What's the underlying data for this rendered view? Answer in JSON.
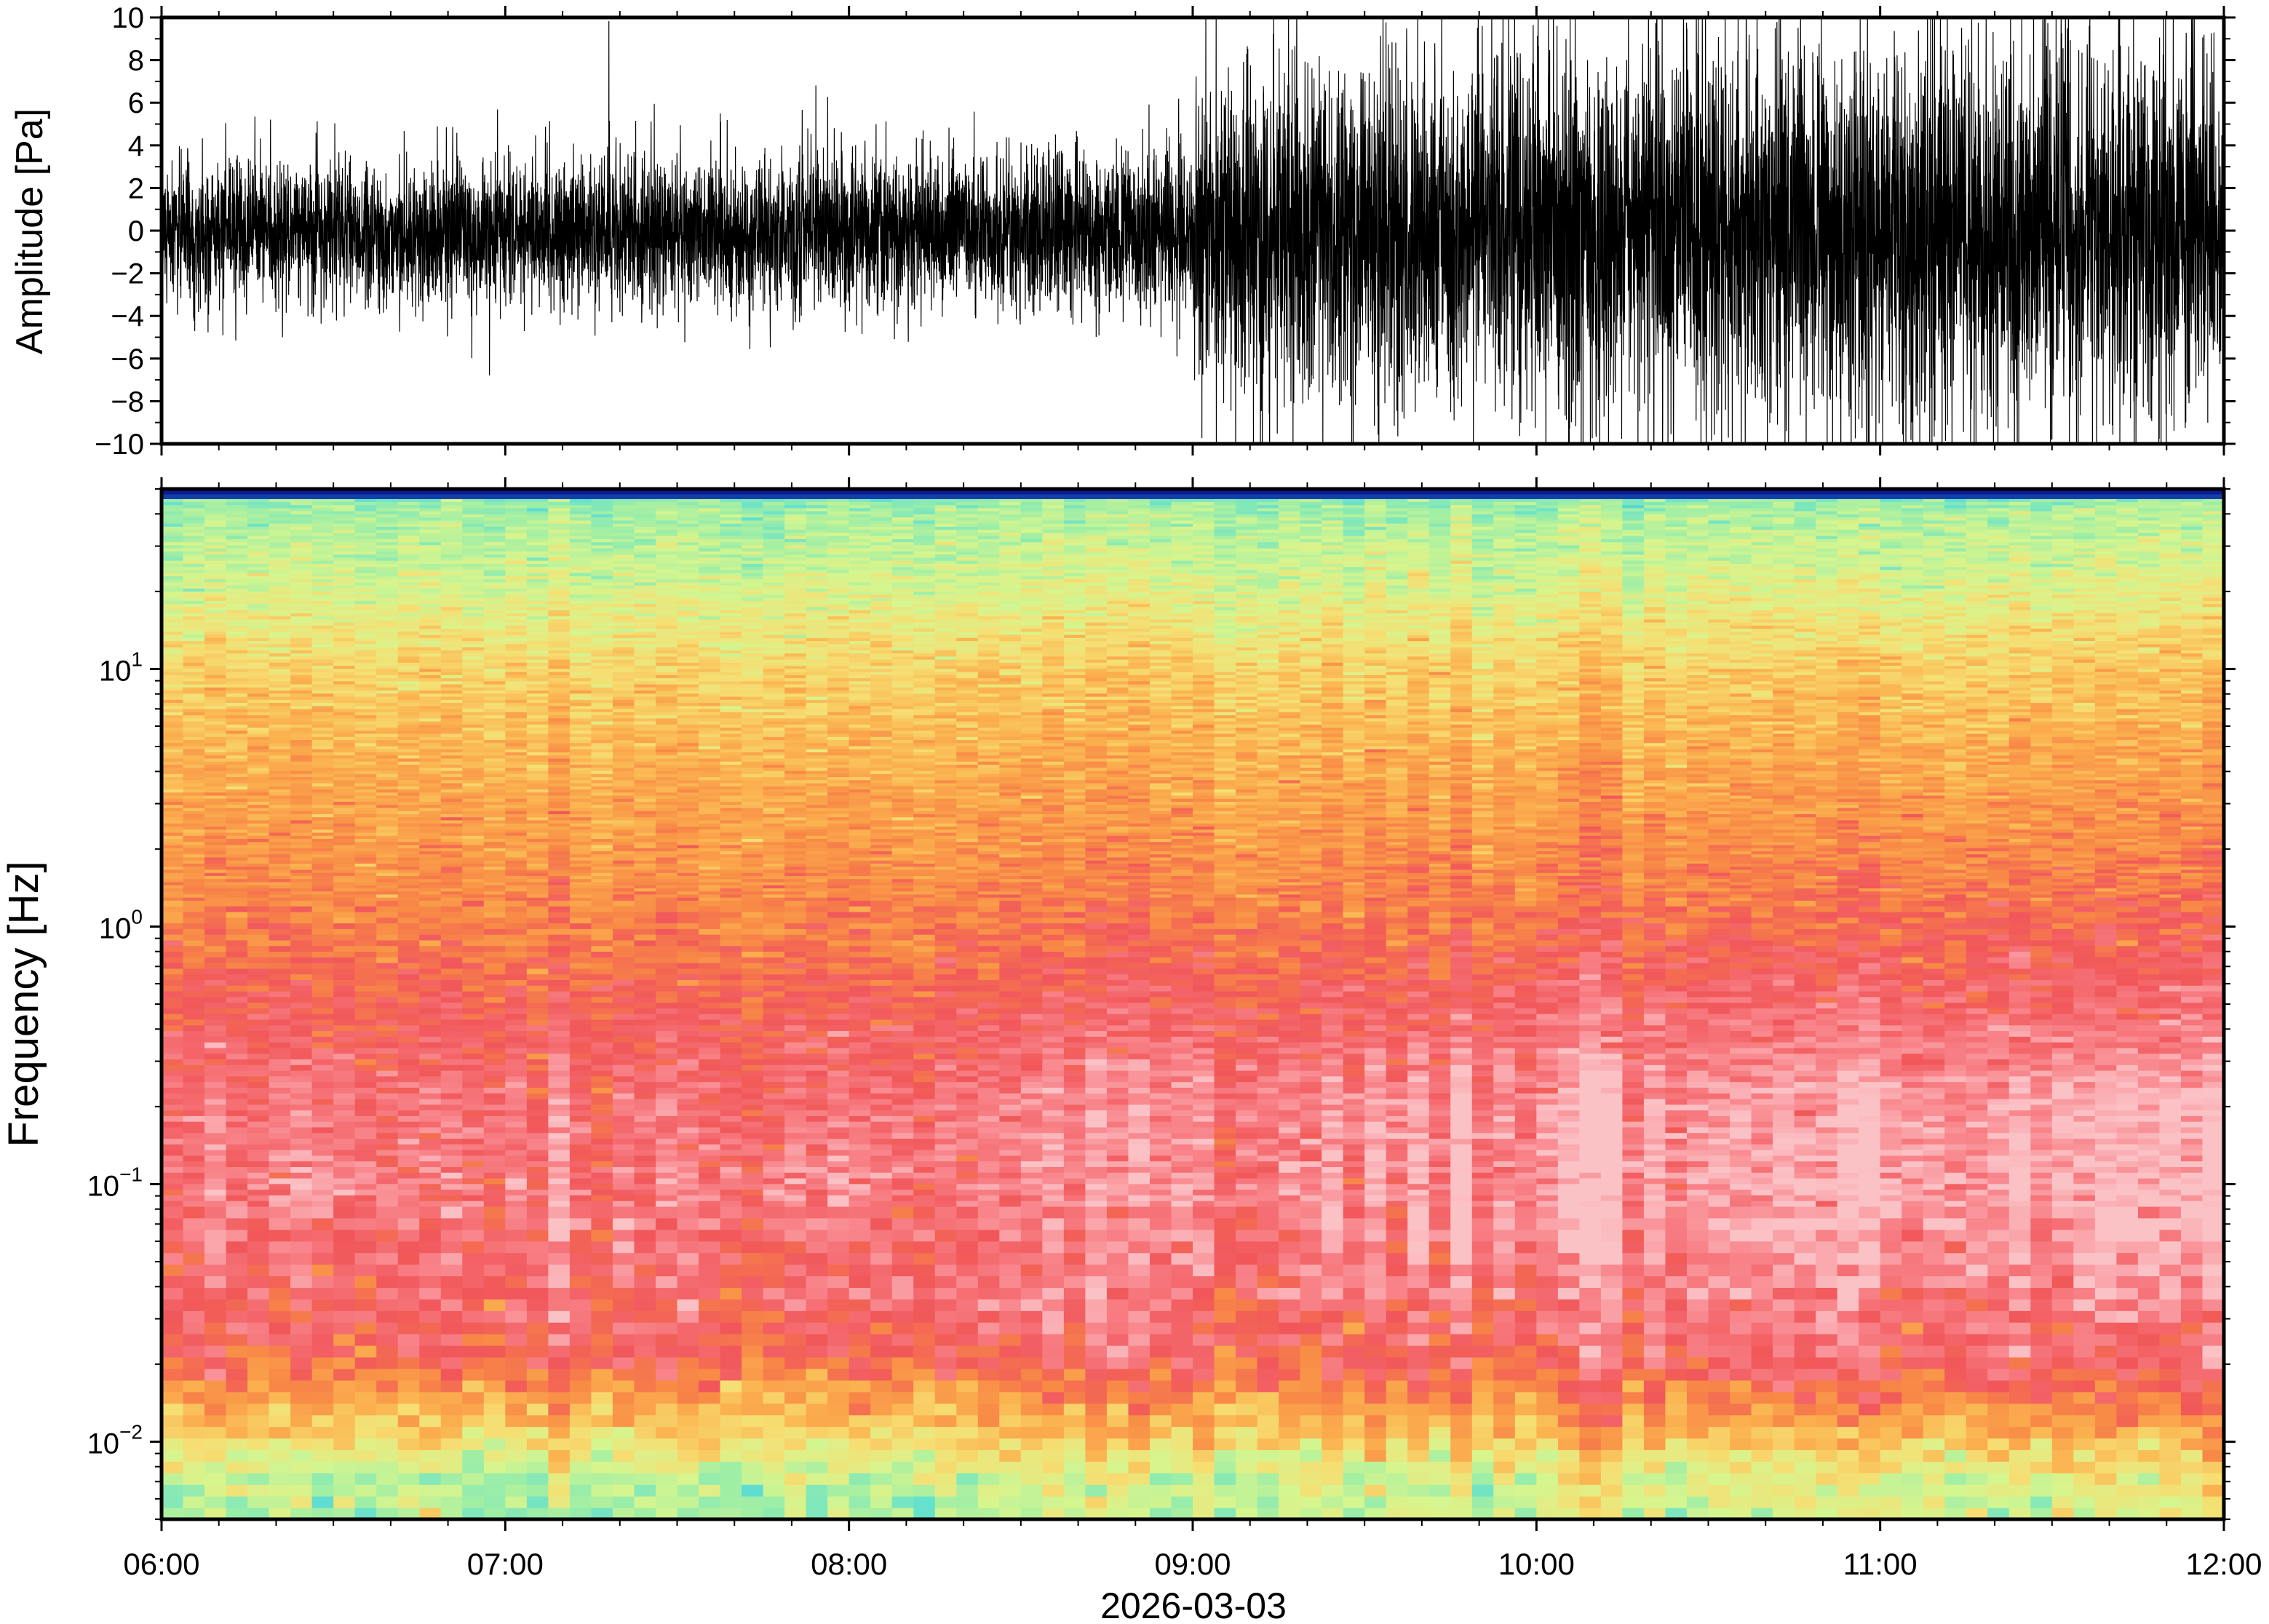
{
  "chart_data": [
    {
      "type": "line",
      "panel": "waveform",
      "ylabel": "Amplitude [Pa]",
      "ylim": [
        -10,
        10
      ],
      "yticks": [
        -10,
        -8,
        -6,
        -4,
        -2,
        0,
        2,
        4,
        6,
        8,
        10
      ],
      "ytick_labels": [
        "−10",
        "−8",
        "−6",
        "−4",
        "−2",
        "0",
        "2",
        "4",
        "6",
        "8",
        "10"
      ],
      "x_range": [
        "06:00",
        "12:00"
      ],
      "series_color": "#000000",
      "envelope": {
        "x": [
          "06:00",
          "06:30",
          "07:00",
          "07:30",
          "08:00",
          "08:30",
          "09:00",
          "09:01",
          "09:30",
          "10:00",
          "10:30",
          "11:00",
          "11:30",
          "12:00"
        ],
        "typical_amplitude": [
          1.8,
          1.8,
          1.9,
          2.0,
          2.0,
          2.1,
          2.2,
          4.2,
          4.4,
          4.8,
          5.2,
          4.8,
          5.0,
          5.0
        ],
        "peak_amplitude": [
          6,
          5,
          5,
          5,
          5,
          5,
          6,
          9,
          10,
          10,
          10,
          10,
          10,
          10
        ]
      }
    },
    {
      "type": "heatmap",
      "panel": "spectrogram",
      "ylabel": "Frequency [Hz]",
      "yscale": "log",
      "ylim": [
        0.005,
        50
      ],
      "yticks": [
        0.01,
        0.1,
        1,
        10
      ],
      "ytick_labels": [
        {
          "base": "10",
          "exp": "−2"
        },
        {
          "base": "10",
          "exp": "−1"
        },
        {
          "base": "10",
          "exp": "0"
        },
        {
          "base": "10",
          "exp": "1"
        }
      ],
      "colormap": [
        "#0a0a80",
        "#1560c8",
        "#43c0e0",
        "#62e0cf",
        "#9eeea6",
        "#d6f58e",
        "#f6de72",
        "#fbb14f",
        "#f88a46",
        "#f1575a",
        "#f8848a",
        "#fbc2c6"
      ],
      "band_profile": {
        "frequency_hz": [
          0.005,
          0.007,
          0.01,
          0.015,
          0.02,
          0.03,
          0.05,
          0.1,
          0.2,
          0.3,
          0.5,
          1,
          2,
          5,
          10,
          20,
          40,
          48
        ],
        "color_index_early": [
          4.2,
          4.5,
          6.0,
          7.4,
          8.6,
          9.2,
          9.4,
          9.8,
          9.6,
          9.3,
          8.9,
          8.2,
          7.6,
          6.9,
          6.2,
          5.1,
          4.2,
          3.6
        ],
        "color_index_late": [
          5.0,
          5.2,
          6.6,
          8.2,
          9.2,
          9.6,
          10.1,
          10.6,
          10.5,
          10.0,
          9.4,
          8.6,
          7.9,
          7.1,
          6.4,
          5.3,
          4.4,
          3.6
        ]
      }
    }
  ],
  "x_axis": {
    "tick_labels": [
      "06:00",
      "07:00",
      "08:00",
      "09:00",
      "10:00",
      "11:00",
      "12:00"
    ],
    "date_label": "2026-03-03"
  }
}
